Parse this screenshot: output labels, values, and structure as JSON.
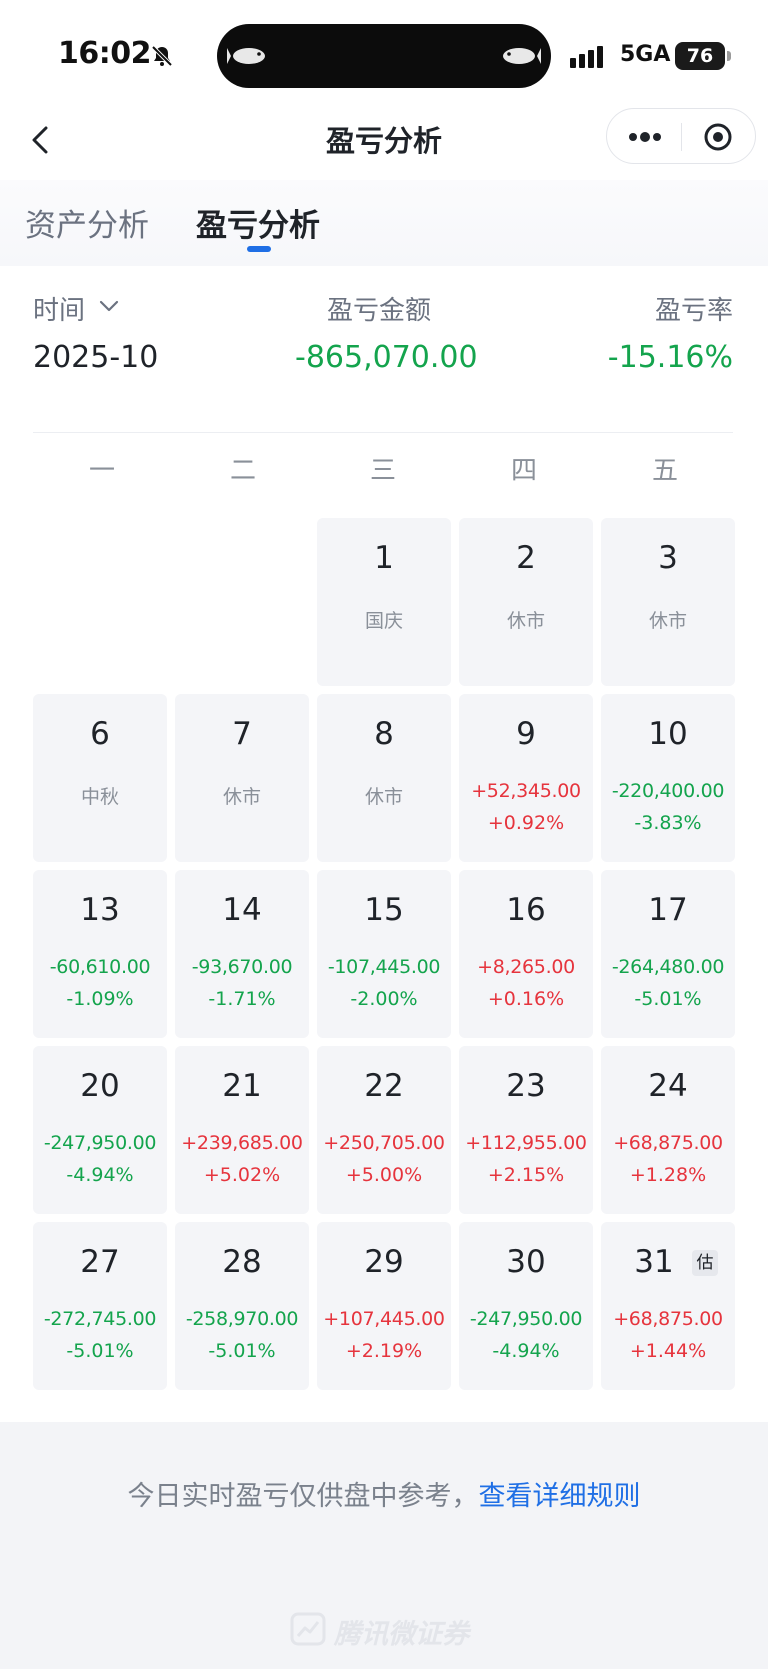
{
  "status_bar": {
    "time": "16:02",
    "network": "5GA",
    "battery": "76"
  },
  "nav": {
    "title": "盈亏分析"
  },
  "tabs": [
    {
      "label": "资产分析",
      "active": false
    },
    {
      "label": "盈亏分析",
      "active": true
    }
  ],
  "summary": {
    "time_label": "时间",
    "month": "2025-10",
    "amount_label": "盈亏金额",
    "amount": "-865,070.00",
    "rate_label": "盈亏率",
    "rate": "-15.16%"
  },
  "weekdays": [
    "一",
    "二",
    "三",
    "四",
    "五"
  ],
  "calendar": {
    "estimate_badge": "估",
    "rows": [
      [
        null,
        null,
        {
          "day": "1",
          "note": "国庆"
        },
        {
          "day": "2",
          "note": "休市"
        },
        {
          "day": "3",
          "note": "休市"
        }
      ],
      [
        {
          "day": "6",
          "note": "中秋"
        },
        {
          "day": "7",
          "note": "休市"
        },
        {
          "day": "8",
          "note": "休市"
        },
        {
          "day": "9",
          "amount": "+52,345.00",
          "rate": "+0.92%"
        },
        {
          "day": "10",
          "amount": "-220,400.00",
          "rate": "-3.83%"
        }
      ],
      [
        {
          "day": "13",
          "amount": "-60,610.00",
          "rate": "-1.09%"
        },
        {
          "day": "14",
          "amount": "-93,670.00",
          "rate": "-1.71%"
        },
        {
          "day": "15",
          "amount": "-107,445.00",
          "rate": "-2.00%"
        },
        {
          "day": "16",
          "amount": "+8,265.00",
          "rate": "+0.16%"
        },
        {
          "day": "17",
          "amount": "-264,480.00",
          "rate": "-5.01%"
        }
      ],
      [
        {
          "day": "20",
          "amount": "-247,950.00",
          "rate": "-4.94%"
        },
        {
          "day": "21",
          "amount": "+239,685.00",
          "rate": "+5.02%"
        },
        {
          "day": "22",
          "amount": "+250,705.00",
          "rate": "+5.00%"
        },
        {
          "day": "23",
          "amount": "+112,955.00",
          "rate": "+2.15%"
        },
        {
          "day": "24",
          "amount": "+68,875.00",
          "rate": "+1.28%"
        }
      ],
      [
        {
          "day": "27",
          "amount": "-272,745.00",
          "rate": "-5.01%"
        },
        {
          "day": "28",
          "amount": "-258,970.00",
          "rate": "-5.01%"
        },
        {
          "day": "29",
          "amount": "+107,445.00",
          "rate": "+2.19%"
        },
        {
          "day": "30",
          "amount": "-247,950.00",
          "rate": "-4.94%"
        },
        {
          "day": "31",
          "amount": "+68,875.00",
          "rate": "+1.44%",
          "estimated": true
        }
      ]
    ]
  },
  "footer": {
    "note": "今日实时盈亏仅供盘中参考，",
    "link": "查看详细规则",
    "brand": "腾讯微证券"
  },
  "colors": {
    "gain": "#e6343d",
    "loss": "#14a44d",
    "accent": "#1f6fe5"
  },
  "icons": [
    "mute-bell-icon",
    "signal-icon",
    "back-arrow-icon",
    "more-dots-icon",
    "target-icon",
    "chevron-down-icon",
    "brand-chart-icon"
  ]
}
